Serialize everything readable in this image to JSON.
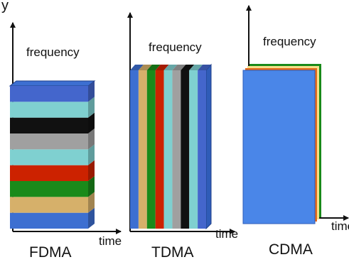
{
  "top_fragment": "y",
  "fdma": {
    "frequency_label": "frequency",
    "time_label": "time",
    "title": "FDMA",
    "band_colors": [
      "#3d6fd1",
      "#d6b06a",
      "#1a8a1a",
      "#cc2200",
      "#7fd0d0",
      "#a0a0a0",
      "#111111",
      "#7fd0d0",
      "#4466cc"
    ]
  },
  "tdma": {
    "frequency_label": "frequency",
    "time_label": "time",
    "title": "TDMA",
    "slot_colors": [
      "#3d6fd1",
      "#d6b06a",
      "#1a8a1a",
      "#cc2200",
      "#7fd0d0",
      "#a0a0a0",
      "#111111",
      "#7fd0d0",
      "#4466cc"
    ]
  },
  "cdma": {
    "frequency_label": "frequency",
    "time_label": "time",
    "title": "CDMA",
    "face_color": "#4a86e8",
    "layer_colors": [
      "#e66a1a",
      "#f4e08a",
      "#1a8a1a"
    ]
  }
}
